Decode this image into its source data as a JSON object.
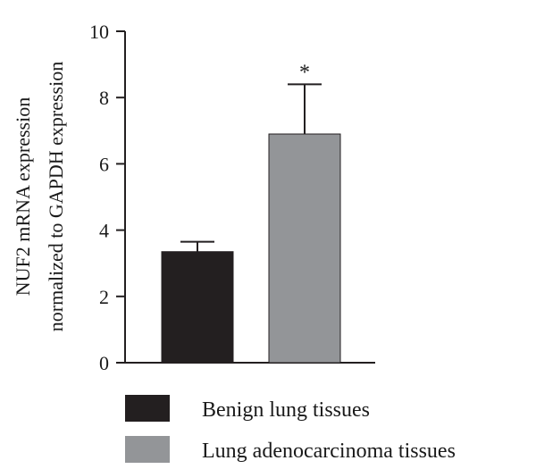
{
  "chart_data": {
    "type": "bar",
    "categories": [
      "Benign lung tissues",
      "Lung adenocarcinoma tissues"
    ],
    "values": [
      3.35,
      6.9
    ],
    "errors": [
      0.3,
      1.5
    ],
    "annotations": [
      "",
      "*"
    ],
    "colors": [
      "#231f20",
      "#939598"
    ],
    "ylabel_lines": [
      "NUF2 mRNA expression",
      "normalized to GAPDH expression"
    ],
    "xlabel": "",
    "ylim": [
      0,
      10
    ],
    "yticks": [
      0,
      2,
      4,
      6,
      8,
      10
    ],
    "legend": {
      "placement": "bottom",
      "entries": [
        "Benign lung tissues",
        "Lung adenocarcinoma tissues"
      ]
    },
    "grid": false
  }
}
